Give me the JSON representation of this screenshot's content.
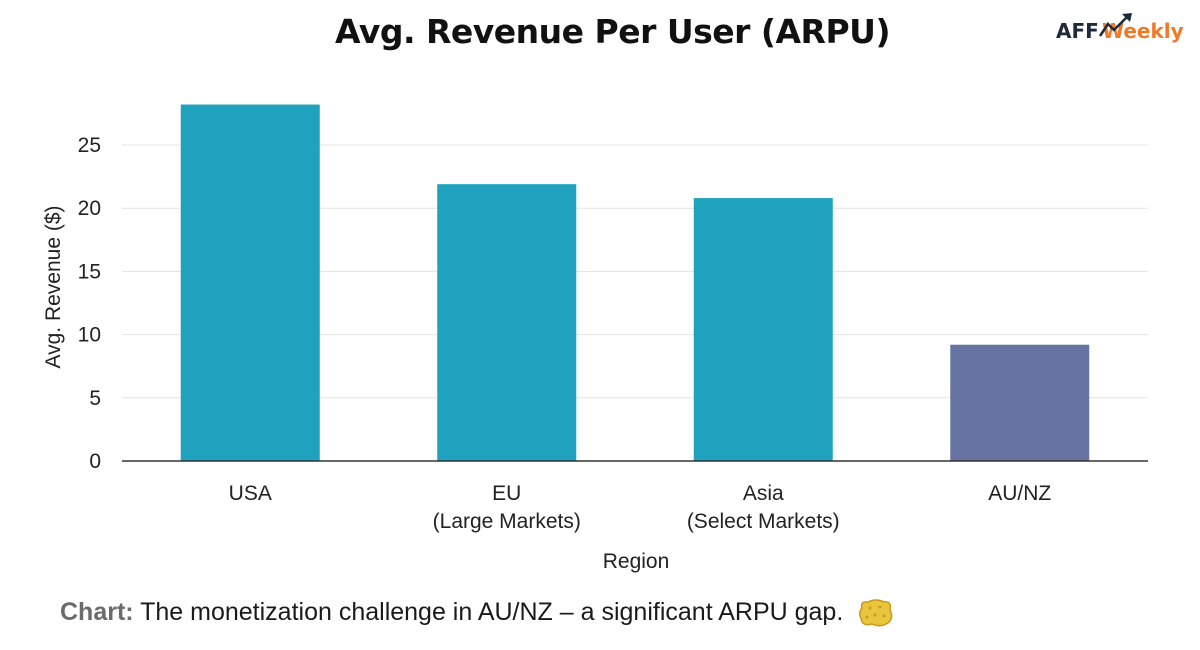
{
  "title": "Avg. Revenue Per User (ARPU)",
  "logo": {
    "text_left": "AFF",
    "text_right": "Weekly",
    "colors": {
      "dark": "#1e2a3a",
      "orange": "#f07a28"
    }
  },
  "chart_data": {
    "type": "bar",
    "title": "Avg. Revenue Per User (ARPU)",
    "xlabel": "Region",
    "ylabel": "Avg. Revenue ($)",
    "categories": [
      [
        "USA"
      ],
      [
        "EU",
        "(Large Markets)"
      ],
      [
        "Asia",
        "(Select Markets)"
      ],
      [
        "AU/NZ"
      ]
    ],
    "values": [
      28.2,
      21.9,
      20.8,
      9.2
    ],
    "colors": [
      "#1fa2be",
      "#1fa2be",
      "#1fa2be",
      "#6773a0"
    ],
    "ylim": [
      0,
      28.5
    ],
    "yticks": [
      0,
      5,
      10,
      15,
      20,
      25
    ],
    "grid": true,
    "legend": "none"
  },
  "caption": {
    "lead": "Chart:",
    "text": "The monetization challenge in AU/NZ – a significant ARPU gap.",
    "emoji": "sponge-icon"
  }
}
